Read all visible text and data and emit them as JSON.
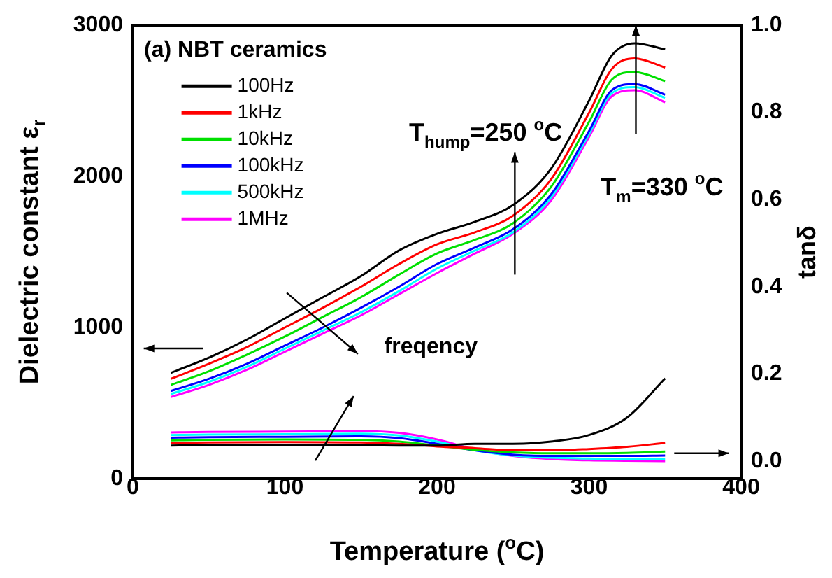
{
  "chart_data": {
    "type": "line",
    "title": "(a) NBT ceramics",
    "xlabel": "Temperature ($^{o}$C)",
    "ylabel": "Dielectric constant ε$_{r}$",
    "y2label": "tanδ",
    "x": [
      25,
      50,
      75,
      100,
      125,
      150,
      175,
      200,
      225,
      250,
      275,
      300,
      315,
      330,
      350
    ],
    "series": [
      {
        "name": "100Hz",
        "color": "#000000",
        "values": [
          700,
          800,
          920,
          1060,
          1200,
          1340,
          1510,
          1620,
          1700,
          1810,
          2050,
          2500,
          2800,
          2880,
          2840
        ]
      },
      {
        "name": "1kHz",
        "color": "#ff0000",
        "values": [
          660,
          760,
          870,
          1000,
          1130,
          1270,
          1420,
          1550,
          1630,
          1740,
          1980,
          2420,
          2710,
          2780,
          2720
        ]
      },
      {
        "name": "10kHz",
        "color": "#00e000",
        "values": [
          620,
          710,
          820,
          940,
          1070,
          1200,
          1350,
          1490,
          1580,
          1690,
          1930,
          2360,
          2640,
          2690,
          2630
        ]
      },
      {
        "name": "100kHz",
        "color": "#0000ff",
        "values": [
          580,
          660,
          760,
          880,
          1000,
          1130,
          1270,
          1420,
          1530,
          1650,
          1880,
          2300,
          2570,
          2610,
          2540
        ]
      },
      {
        "name": "500kHz",
        "color": "#00ffff",
        "values": [
          560,
          640,
          740,
          860,
          980,
          1100,
          1240,
          1390,
          1510,
          1630,
          1860,
          2280,
          2550,
          2590,
          2520
        ]
      },
      {
        "name": "1MHz",
        "color": "#ff00ff",
        "values": [
          540,
          620,
          720,
          840,
          960,
          1080,
          1220,
          1360,
          1490,
          1620,
          1840,
          2260,
          2530,
          2570,
          2490
        ]
      },
      {
        "color": "#000000",
        "axis": "y2",
        "x": [
          25,
          50,
          100,
          150,
          175,
          200,
          225,
          250,
          275,
          300,
          325,
          350
        ],
        "values": [
          0.036,
          0.037,
          0.038,
          0.037,
          0.036,
          0.036,
          0.04,
          0.04,
          0.045,
          0.06,
          0.1,
          0.19
        ]
      },
      {
        "color": "#ff0000",
        "axis": "y2",
        "x": [
          25,
          50,
          100,
          150,
          175,
          200,
          225,
          250,
          275,
          300,
          325,
          350
        ],
        "values": [
          0.042,
          0.043,
          0.044,
          0.043,
          0.04,
          0.034,
          0.03,
          0.025,
          0.025,
          0.028,
          0.033,
          0.042
        ]
      },
      {
        "color": "#00e000",
        "axis": "y2",
        "x": [
          25,
          50,
          100,
          150,
          175,
          200,
          225,
          250,
          275,
          300,
          325,
          350
        ],
        "values": [
          0.048,
          0.049,
          0.05,
          0.049,
          0.045,
          0.036,
          0.026,
          0.02,
          0.018,
          0.018,
          0.019,
          0.022
        ]
      },
      {
        "color": "#0000ff",
        "axis": "y2",
        "x": [
          25,
          50,
          100,
          150,
          175,
          200,
          225,
          250,
          275,
          300,
          325,
          350
        ],
        "values": [
          0.054,
          0.055,
          0.056,
          0.057,
          0.053,
          0.04,
          0.025,
          0.015,
          0.012,
          0.012,
          0.012,
          0.013
        ]
      },
      {
        "color": "#00ffff",
        "axis": "y2",
        "x": [
          25,
          50,
          100,
          150,
          175,
          200,
          225,
          250,
          275,
          300,
          325,
          350
        ],
        "values": [
          0.06,
          0.061,
          0.062,
          0.063,
          0.059,
          0.045,
          0.025,
          0.013,
          0.008,
          0.006,
          0.005,
          0.005
        ]
      },
      {
        "color": "#ff00ff",
        "axis": "y2",
        "x": [
          25,
          50,
          100,
          150,
          175,
          200,
          225,
          250,
          275,
          300,
          325,
          350
        ],
        "values": [
          0.066,
          0.067,
          0.068,
          0.069,
          0.065,
          0.05,
          0.027,
          0.012,
          0.005,
          0.002,
          0.001,
          0.0
        ]
      }
    ],
    "annotations": [
      "T$_{hump}$=250 $^{o}$C",
      "T$_{m}$=330 $^{o}$C",
      "freqency"
    ],
    "xlim": [
      0,
      400
    ],
    "xticks": [
      0,
      100,
      200,
      300,
      400
    ],
    "ylim": [
      0,
      3000
    ],
    "yticks": [
      0,
      1000,
      2000,
      3000
    ],
    "y2lim": [
      -0.04,
      1.0
    ],
    "y2ticks": [
      {
        "value": 0,
        "label": "0.0"
      },
      {
        "value": 0.2,
        "label": "0.2"
      },
      {
        "value": 0.4,
        "label": "0.4"
      },
      {
        "value": 0.6,
        "label": "0.6"
      },
      {
        "value": 0.8,
        "label": "0.8"
      },
      {
        "value": 1.0,
        "label": "1.0"
      }
    ],
    "legend": "top left",
    "grid": false,
    "marker": "none",
    "line_style": "solid"
  }
}
